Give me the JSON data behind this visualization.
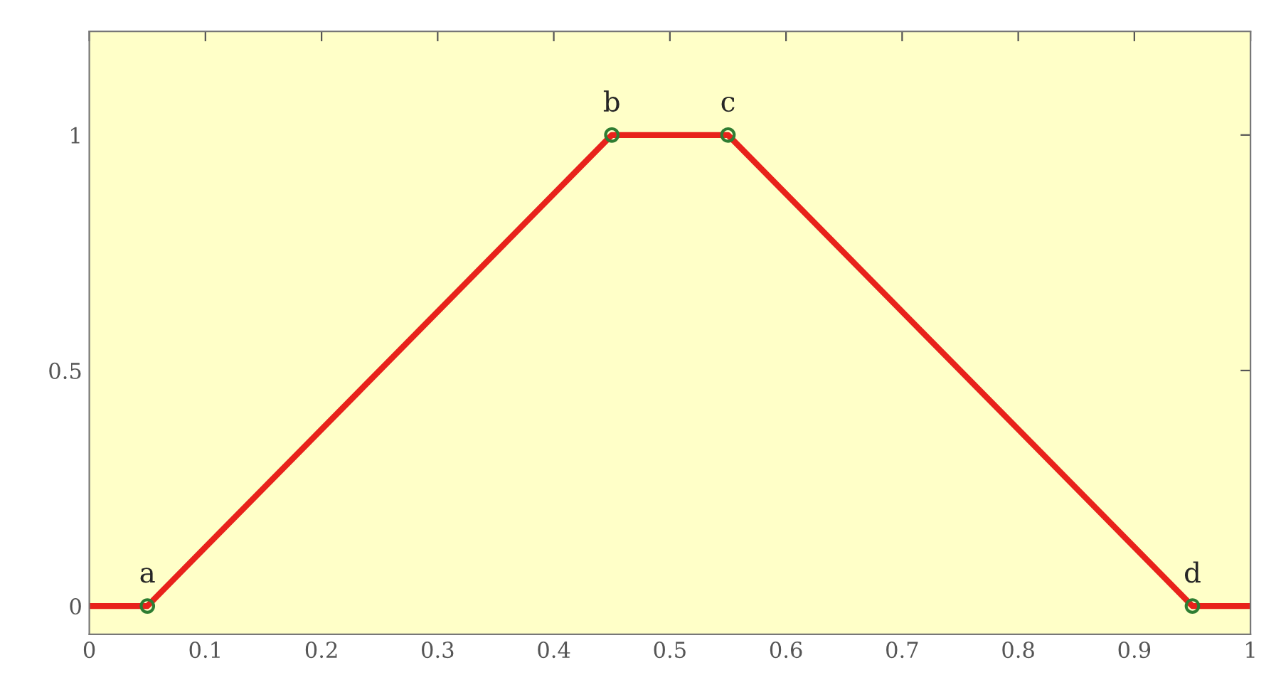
{
  "chart_data": {
    "type": "line",
    "x": [
      0,
      0.05,
      0.45,
      0.55,
      0.95,
      1
    ],
    "series": [
      {
        "color": "#e8221b",
        "values": [
          0,
          0,
          1,
          1,
          0,
          0
        ],
        "marker": "none"
      },
      {
        "type": "scatter",
        "color": "#2e7d32",
        "x": [
          0.05,
          0.45,
          0.55,
          0.95
        ],
        "values": [
          0,
          1,
          1,
          0
        ],
        "marker": "circle"
      }
    ],
    "annotations": [
      {
        "text": "a",
        "x": 0.05,
        "y": 0
      },
      {
        "text": "b",
        "x": 0.45,
        "y": 1
      },
      {
        "text": "c",
        "x": 0.55,
        "y": 1
      },
      {
        "text": "d",
        "x": 0.95,
        "y": 0
      }
    ],
    "xlim": [
      0,
      1
    ],
    "xticks": [
      0,
      0.1,
      0.2,
      0.3,
      0.4,
      0.5,
      0.6,
      0.7,
      0.8,
      0.9,
      1
    ],
    "ylim": [
      -0.06,
      1.22
    ],
    "yticks": [
      0,
      0.5,
      1
    ],
    "grid": false,
    "legend": false
  }
}
